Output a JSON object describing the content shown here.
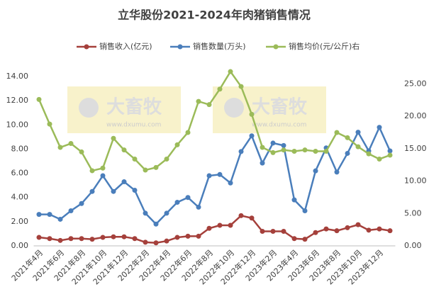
{
  "chart_data": {
    "type": "line",
    "title": "立华股份2021-2024年肉猪销售情况",
    "watermarks": [
      {
        "brand": "大畜牧",
        "url": "www.dxumu.com"
      },
      {
        "brand": "大畜牧",
        "url": "www.dxumu.com"
      }
    ],
    "categories": [
      "2021年4月",
      null,
      "2021年6月",
      null,
      "2021年8月",
      null,
      "2021年10月",
      null,
      "2021年12月",
      null,
      "2022年2月",
      null,
      "2022年4月",
      null,
      "2022年6月",
      null,
      "2022年8月",
      null,
      "2022年10月",
      null,
      "2022年12月",
      null,
      "2023年2月",
      null,
      "2023年4月",
      null,
      "2023年6月",
      null,
      "2023年8月",
      null,
      "2023年10月",
      null,
      "2023年12月",
      null
    ],
    "series": [
      {
        "name": "销售收入(亿元)",
        "color": "#a5403b",
        "axis": "y",
        "values": [
          0.7,
          0.6,
          0.45,
          0.6,
          0.6,
          0.55,
          0.7,
          0.75,
          0.75,
          0.6,
          0.3,
          0.25,
          0.4,
          0.7,
          0.8,
          0.8,
          1.45,
          1.7,
          1.7,
          2.5,
          2.3,
          1.2,
          1.2,
          1.2,
          0.6,
          0.55,
          1.1,
          1.4,
          1.25,
          1.5,
          1.75,
          1.3,
          1.4,
          1.25
        ]
      },
      {
        "name": "销售数量(万头)",
        "color": "#4a7ebb",
        "axis": "y",
        "values": [
          2.6,
          2.6,
          2.2,
          2.9,
          3.5,
          4.5,
          5.8,
          4.5,
          5.3,
          4.6,
          2.7,
          1.8,
          2.7,
          3.6,
          4.0,
          3.2,
          5.8,
          5.9,
          5.2,
          7.8,
          9.1,
          6.85,
          8.5,
          8.3,
          3.8,
          2.9,
          6.2,
          8.1,
          6.1,
          7.65,
          9.4,
          7.85,
          9.8,
          7.85
        ]
      },
      {
        "name": "销售均价(元/公斤)右",
        "color": "#9bbb59",
        "axis": "y2",
        "values": [
          22.6,
          18.8,
          15.2,
          15.8,
          14.5,
          11.6,
          12.0,
          16.6,
          14.8,
          13.4,
          11.7,
          12.1,
          13.4,
          15.6,
          17.5,
          22.3,
          21.8,
          24.2,
          26.9,
          24.6,
          20.3,
          15.2,
          14.4,
          14.8,
          14.6,
          14.8,
          14.6,
          14.6,
          17.5,
          16.7,
          15.3,
          14.2,
          13.4,
          14.0
        ]
      }
    ],
    "ylim": [
      0,
      15
    ],
    "yticks": [
      {
        "value": 0,
        "label": "0.00"
      },
      {
        "value": 2,
        "label": "2.00"
      },
      {
        "value": 4,
        "label": "4.00"
      },
      {
        "value": 6,
        "label": "6.00"
      },
      {
        "value": 8,
        "label": "8.00"
      },
      {
        "value": 10,
        "label": "10.00"
      },
      {
        "value": 12,
        "label": "12.00"
      },
      {
        "value": 14,
        "label": "14.00"
      }
    ],
    "y2lim": [
      0,
      28
    ],
    "y2ticks": [
      {
        "value": 0,
        "label": "0.00"
      },
      {
        "value": 5,
        "label": "5.00"
      },
      {
        "value": 10,
        "label": "10.00"
      },
      {
        "value": 15,
        "label": "15.00"
      },
      {
        "value": 20,
        "label": "20.00"
      },
      {
        "value": 25,
        "label": "25.00"
      }
    ],
    "grid": false,
    "legend": "top"
  }
}
